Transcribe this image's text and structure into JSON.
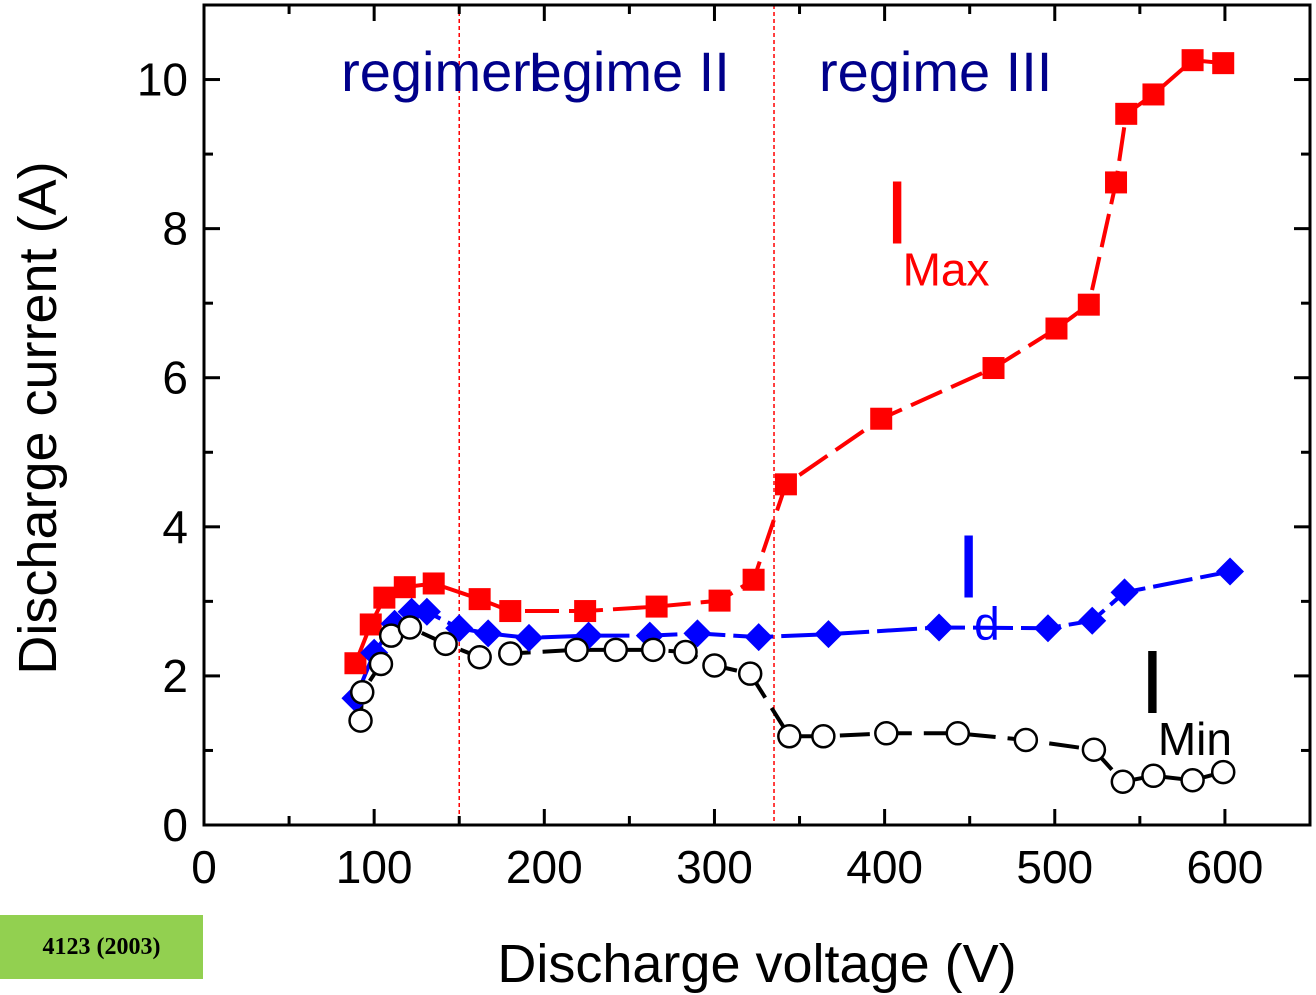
{
  "chart_data": {
    "type": "scatter",
    "title": "",
    "xlabel": "Discharge voltage (V)",
    "ylabel": "Discharge current (A)",
    "xlim": [
      0,
      650
    ],
    "ylim": [
      0,
      11
    ],
    "x_ticks": [
      0,
      100,
      200,
      300,
      400,
      500,
      600
    ],
    "y_ticks": [
      0,
      2,
      4,
      6,
      8,
      10
    ],
    "grid": false,
    "legend": "none",
    "regime_boundaries": [
      150,
      335
    ],
    "regimes": [
      {
        "label": "regime I",
        "x": 140
      },
      {
        "label": "regime II",
        "x": 245
      },
      {
        "label": "regime III",
        "x": 430
      }
    ],
    "series": [
      {
        "label_main": "I",
        "label_sub": "Max",
        "color": "#ff0000",
        "marker": "square",
        "label_x": 400,
        "label_y": 7.8,
        "x": [
          89,
          98,
          106,
          118,
          135,
          162,
          180,
          224,
          266,
          303,
          323,
          342,
          398,
          464,
          501,
          520,
          536,
          542,
          558,
          581,
          599
        ],
        "y": [
          2.17,
          2.69,
          3.05,
          3.19,
          3.24,
          3.03,
          2.87,
          2.87,
          2.93,
          3.01,
          3.29,
          4.57,
          5.45,
          6.13,
          6.66,
          6.98,
          8.62,
          9.54,
          9.8,
          10.26,
          10.22
        ]
      },
      {
        "label_main": "I",
        "label_sub": "d",
        "color": "#0000ff",
        "marker": "diamond",
        "label_x": 442,
        "label_y": 3.05,
        "x": [
          89,
          100,
          112,
          122,
          131,
          150,
          167,
          191,
          226,
          262,
          290,
          326,
          367,
          432,
          496,
          522,
          541,
          603
        ],
        "y": [
          1.7,
          2.31,
          2.7,
          2.86,
          2.86,
          2.64,
          2.57,
          2.51,
          2.54,
          2.54,
          2.57,
          2.52,
          2.56,
          2.65,
          2.64,
          2.74,
          3.12,
          3.4
        ]
      },
      {
        "label_main": "I",
        "label_sub": "Min",
        "color": "#000000",
        "marker": "circle",
        "label_x": 550,
        "label_y": 1.5,
        "x": [
          92,
          93,
          104,
          110,
          121,
          142,
          162,
          180,
          219,
          242,
          264,
          283,
          300,
          321,
          344,
          364,
          401,
          443,
          483,
          523,
          540,
          558,
          581,
          599
        ],
        "y": [
          1.4,
          1.78,
          2.16,
          2.54,
          2.65,
          2.43,
          2.25,
          2.3,
          2.35,
          2.35,
          2.35,
          2.32,
          2.14,
          2.03,
          1.19,
          1.19,
          1.23,
          1.23,
          1.14,
          1.01,
          0.58,
          0.66,
          0.6,
          0.71
        ]
      }
    ]
  },
  "badge": {
    "text": "4123 (2003)"
  }
}
